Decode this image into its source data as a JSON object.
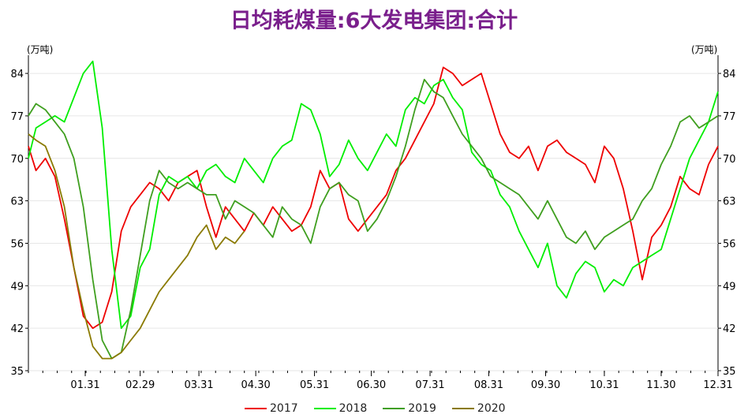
{
  "chart_data": {
    "type": "line",
    "title": "日均耗煤量:6大发电集团:合计",
    "unit_left": "(万吨)",
    "unit_right": "(万吨)",
    "ylim": [
      35,
      87
    ],
    "yticks": [
      35,
      42,
      49,
      56,
      63,
      70,
      77,
      84
    ],
    "xlim": [
      1,
      365
    ],
    "xticks": [
      {
        "day": 31,
        "label": "01.31"
      },
      {
        "day": 60,
        "label": "02.29"
      },
      {
        "day": 91,
        "label": "03.31"
      },
      {
        "day": 121,
        "label": "04.30"
      },
      {
        "day": 152,
        "label": "05.31"
      },
      {
        "day": 182,
        "label": "06.30"
      },
      {
        "day": 213,
        "label": "07.31"
      },
      {
        "day": 244,
        "label": "08.31"
      },
      {
        "day": 274,
        "label": "09.30"
      },
      {
        "day": 305,
        "label": "10.31"
      },
      {
        "day": 335,
        "label": "11.30"
      },
      {
        "day": 366,
        "label": "12.31"
      }
    ],
    "grid": "horizontal",
    "legend_position": "bottom",
    "series": [
      {
        "name": "2017",
        "color": "#ee0000",
        "x": [
          1,
          5,
          10,
          15,
          20,
          25,
          30,
          35,
          40,
          45,
          50,
          55,
          60,
          65,
          70,
          75,
          80,
          85,
          90,
          95,
          100,
          105,
          110,
          115,
          120,
          125,
          130,
          135,
          140,
          145,
          150,
          155,
          160,
          165,
          170,
          175,
          180,
          185,
          190,
          195,
          200,
          205,
          210,
          215,
          220,
          225,
          230,
          235,
          240,
          245,
          250,
          255,
          260,
          265,
          270,
          275,
          280,
          285,
          290,
          295,
          300,
          305,
          310,
          315,
          320,
          325,
          330,
          335,
          340,
          345,
          350,
          355,
          360,
          365
        ],
        "y": [
          72,
          68,
          70,
          67,
          60,
          52,
          44,
          42,
          43,
          48,
          58,
          62,
          64,
          66,
          65,
          63,
          66,
          67,
          68,
          62,
          57,
          62,
          60,
          58,
          61,
          59,
          62,
          60,
          58,
          59,
          62,
          68,
          65,
          66,
          60,
          58,
          60,
          62,
          64,
          68,
          70,
          73,
          76,
          79,
          85,
          84,
          82,
          83,
          84,
          79,
          74,
          71,
          70,
          72,
          68,
          72,
          73,
          71,
          70,
          69,
          66,
          72,
          70,
          65,
          58,
          50,
          57,
          59,
          62,
          67,
          65,
          64,
          69,
          72
        ]
      },
      {
        "name": "2018",
        "color": "#00ee00",
        "x": [
          1,
          5,
          10,
          15,
          20,
          25,
          30,
          35,
          40,
          45,
          50,
          55,
          60,
          65,
          70,
          75,
          80,
          85,
          90,
          95,
          100,
          105,
          110,
          115,
          120,
          125,
          130,
          135,
          140,
          145,
          150,
          155,
          160,
          165,
          170,
          175,
          180,
          185,
          190,
          195,
          200,
          205,
          210,
          215,
          220,
          225,
          230,
          235,
          240,
          245,
          250,
          255,
          260,
          265,
          270,
          275,
          280,
          285,
          290,
          295,
          300,
          305,
          310,
          315,
          320,
          325,
          330,
          335,
          340,
          345,
          350,
          355,
          360,
          365
        ],
        "y": [
          70,
          75,
          76,
          77,
          76,
          80,
          84,
          86,
          75,
          55,
          42,
          44,
          52,
          55,
          64,
          67,
          66,
          67,
          65,
          68,
          69,
          67,
          66,
          70,
          68,
          66,
          70,
          72,
          73,
          79,
          78,
          74,
          67,
          69,
          73,
          70,
          68,
          71,
          74,
          72,
          78,
          80,
          79,
          82,
          83,
          80,
          78,
          71,
          69,
          68,
          64,
          62,
          58,
          55,
          52,
          56,
          49,
          47,
          51,
          53,
          52,
          48,
          50,
          49,
          52,
          53,
          54,
          55,
          60,
          65,
          70,
          73,
          76,
          81
        ]
      },
      {
        "name": "2019",
        "color": "#3f9f1f",
        "x": [
          1,
          5,
          10,
          15,
          20,
          25,
          30,
          35,
          40,
          45,
          50,
          55,
          60,
          65,
          70,
          75,
          80,
          85,
          90,
          95,
          100,
          105,
          110,
          115,
          120,
          125,
          130,
          135,
          140,
          145,
          150,
          155,
          160,
          165,
          170,
          175,
          180,
          185,
          190,
          195,
          200,
          205,
          210,
          215,
          220,
          225,
          230,
          235,
          240,
          245,
          250,
          255,
          260,
          265,
          270,
          275,
          280,
          285,
          290,
          295,
          300,
          305,
          310,
          315,
          320,
          325,
          330,
          335,
          340,
          345,
          350,
          355,
          360,
          365
        ],
        "y": [
          77,
          79,
          78,
          76,
          74,
          70,
          62,
          50,
          40,
          37,
          38,
          45,
          54,
          63,
          68,
          66,
          65,
          66,
          65,
          64,
          64,
          60,
          63,
          62,
          61,
          59,
          57,
          62,
          60,
          59,
          56,
          62,
          65,
          66,
          64,
          63,
          58,
          60,
          63,
          67,
          72,
          78,
          83,
          81,
          80,
          77,
          74,
          72,
          70,
          67,
          66,
          65,
          64,
          62,
          60,
          63,
          60,
          57,
          56,
          58,
          55,
          57,
          58,
          59,
          60,
          63,
          65,
          69,
          72,
          76,
          77,
          75,
          76,
          77
        ]
      },
      {
        "name": "2020",
        "color": "#8a7a00",
        "x": [
          1,
          5,
          10,
          15,
          20,
          25,
          30,
          35,
          40,
          45,
          50,
          55,
          60,
          65,
          70,
          75,
          80,
          85,
          90,
          95,
          100,
          105,
          110,
          115
        ],
        "y": [
          74,
          73,
          72,
          68,
          62,
          52,
          45,
          39,
          37,
          37,
          38,
          40,
          42,
          45,
          48,
          50,
          52,
          54,
          57,
          59,
          55,
          57,
          56,
          58
        ]
      }
    ]
  }
}
